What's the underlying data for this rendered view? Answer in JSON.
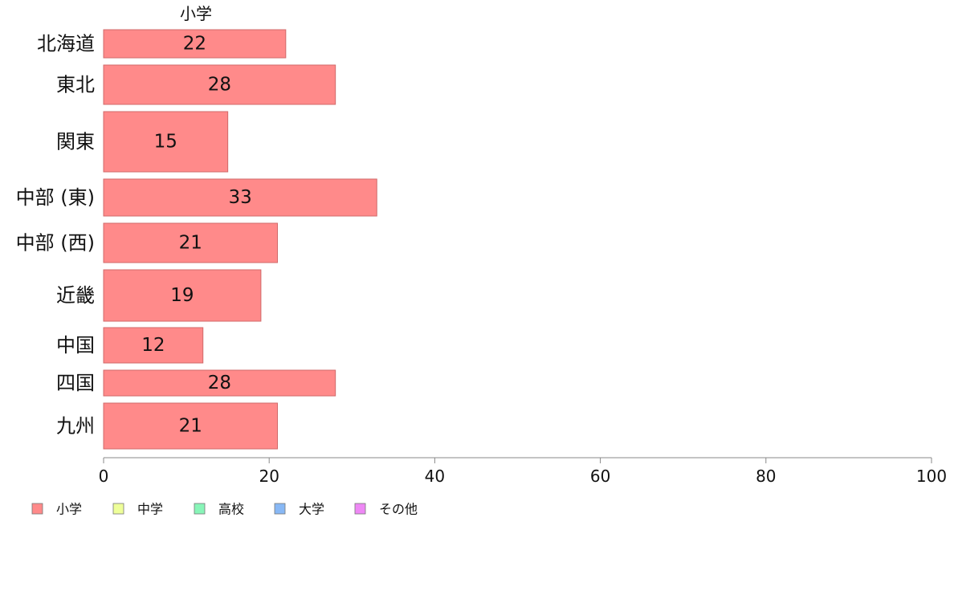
{
  "chart_data": {
    "type": "bar",
    "orientation": "horizontal",
    "title": "小学",
    "categories": [
      "北海道",
      "東北",
      "関東",
      "中部 (東)",
      "中部 (西)",
      "近畿",
      "中国",
      "四国",
      "九州"
    ],
    "series": [
      {
        "name": "小学",
        "values": [
          22,
          28,
          15,
          33,
          21,
          19,
          12,
          28,
          21
        ]
      }
    ],
    "bar_labels": [
      "22",
      "28",
      "15",
      "33",
      "21",
      "19",
      "12",
      "28",
      "21"
    ],
    "xlim": [
      0,
      100
    ],
    "xticks": [
      0,
      20,
      40,
      60,
      80,
      100
    ],
    "xtick_labels": [
      "0",
      "20",
      "40",
      "60",
      "80",
      "100"
    ],
    "grid": false,
    "legend_position": "bottom-left",
    "legend": [
      {
        "label": "小学",
        "color": "#ff8a8a"
      },
      {
        "label": "中学",
        "color": "#eeff99"
      },
      {
        "label": "高校",
        "color": "#88f5b8"
      },
      {
        "label": "大学",
        "color": "#88b8f5"
      },
      {
        "label": "その他",
        "color": "#ee88f5"
      }
    ],
    "bar_color": "#ff8a8a",
    "bar_edge_color": "#d06a6a",
    "axis_color": "#888888"
  }
}
